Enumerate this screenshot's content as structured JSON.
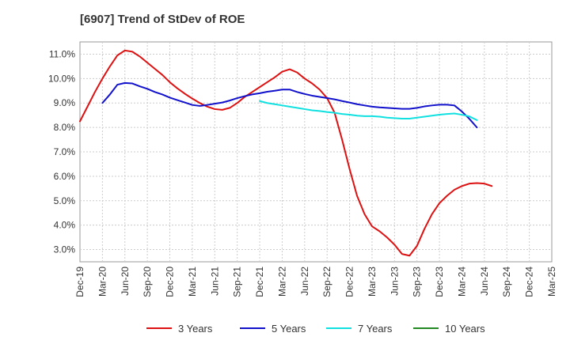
{
  "chart_data": {
    "type": "line",
    "title": "[6907]  Trend of StDev of ROE",
    "xlabel": "",
    "ylabel": "",
    "x_ticks": [
      "Dec-19",
      "Mar-20",
      "Jun-20",
      "Sep-20",
      "Dec-20",
      "Mar-21",
      "Jun-21",
      "Sep-21",
      "Dec-21",
      "Mar-22",
      "Jun-22",
      "Sep-22",
      "Dec-22",
      "Mar-23",
      "Jun-23",
      "Sep-23",
      "Dec-23",
      "Mar-24",
      "Jun-24",
      "Sep-24",
      "Dec-24",
      "Mar-25"
    ],
    "y_ticks": [
      "3.0%",
      "4.0%",
      "5.0%",
      "6.0%",
      "7.0%",
      "8.0%",
      "9.0%",
      "10.0%",
      "11.0%"
    ],
    "ylim": [
      2.5,
      11.5
    ],
    "grid": true,
    "legend_position": "bottom",
    "series": [
      {
        "name": "3 Years",
        "color": "#dd1111",
        "values": [
          [
            0,
            8.25
          ],
          [
            1,
            8.85
          ],
          [
            2,
            9.45
          ],
          [
            3,
            10.0
          ],
          [
            4,
            10.5
          ],
          [
            5,
            10.95
          ],
          [
            6,
            11.15
          ],
          [
            7,
            11.1
          ],
          [
            8,
            10.9
          ],
          [
            9,
            10.65
          ],
          [
            10,
            10.4
          ],
          [
            11,
            10.15
          ],
          [
            12,
            9.85
          ],
          [
            13,
            9.6
          ],
          [
            14,
            9.38
          ],
          [
            15,
            9.18
          ],
          [
            16,
            9.0
          ],
          [
            17,
            8.85
          ],
          [
            18,
            8.75
          ],
          [
            19,
            8.72
          ],
          [
            20,
            8.8
          ],
          [
            21,
            9.0
          ],
          [
            22,
            9.25
          ],
          [
            23,
            9.45
          ],
          [
            24,
            9.65
          ],
          [
            25,
            9.85
          ],
          [
            26,
            10.05
          ],
          [
            27,
            10.28
          ],
          [
            28,
            10.38
          ],
          [
            29,
            10.25
          ],
          [
            30,
            10.0
          ],
          [
            31,
            9.8
          ],
          [
            32,
            9.55
          ],
          [
            33,
            9.2
          ],
          [
            34,
            8.6
          ],
          [
            35,
            7.5
          ],
          [
            36,
            6.3
          ],
          [
            37,
            5.2
          ],
          [
            38,
            4.45
          ],
          [
            39,
            3.95
          ],
          [
            40,
            3.75
          ],
          [
            41,
            3.5
          ],
          [
            42,
            3.2
          ],
          [
            43,
            2.82
          ],
          [
            44,
            2.75
          ],
          [
            45,
            3.15
          ],
          [
            46,
            3.85
          ],
          [
            47,
            4.45
          ],
          [
            48,
            4.9
          ],
          [
            49,
            5.2
          ],
          [
            50,
            5.45
          ],
          [
            51,
            5.6
          ],
          [
            52,
            5.7
          ],
          [
            53,
            5.72
          ],
          [
            54,
            5.7
          ],
          [
            55,
            5.6
          ]
        ]
      },
      {
        "name": "5 Years",
        "color": "#1111cc",
        "values": [
          [
            3,
            9.0
          ],
          [
            4,
            9.35
          ],
          [
            5,
            9.75
          ],
          [
            6,
            9.82
          ],
          [
            7,
            9.8
          ],
          [
            8,
            9.68
          ],
          [
            9,
            9.58
          ],
          [
            10,
            9.45
          ],
          [
            11,
            9.35
          ],
          [
            12,
            9.22
          ],
          [
            13,
            9.12
          ],
          [
            14,
            9.02
          ],
          [
            15,
            8.92
          ],
          [
            16,
            8.88
          ],
          [
            17,
            8.92
          ],
          [
            18,
            8.97
          ],
          [
            19,
            9.02
          ],
          [
            20,
            9.1
          ],
          [
            21,
            9.2
          ],
          [
            22,
            9.28
          ],
          [
            23,
            9.35
          ],
          [
            24,
            9.4
          ],
          [
            25,
            9.46
          ],
          [
            26,
            9.5
          ],
          [
            27,
            9.55
          ],
          [
            28,
            9.55
          ],
          [
            29,
            9.45
          ],
          [
            30,
            9.37
          ],
          [
            31,
            9.3
          ],
          [
            32,
            9.25
          ],
          [
            33,
            9.2
          ],
          [
            34,
            9.15
          ],
          [
            35,
            9.08
          ],
          [
            36,
            9.02
          ],
          [
            37,
            8.95
          ],
          [
            38,
            8.9
          ],
          [
            39,
            8.85
          ],
          [
            40,
            8.82
          ],
          [
            41,
            8.8
          ],
          [
            42,
            8.78
          ],
          [
            43,
            8.76
          ],
          [
            44,
            8.76
          ],
          [
            45,
            8.8
          ],
          [
            46,
            8.86
          ],
          [
            47,
            8.9
          ],
          [
            48,
            8.93
          ],
          [
            49,
            8.93
          ],
          [
            50,
            8.9
          ],
          [
            51,
            8.65
          ],
          [
            52,
            8.35
          ],
          [
            53,
            8.0
          ]
        ]
      },
      {
        "name": "7 Years",
        "color": "#11e0e0",
        "values": [
          [
            24,
            9.08
          ],
          [
            25,
            9.0
          ],
          [
            26,
            8.95
          ],
          [
            27,
            8.9
          ],
          [
            28,
            8.85
          ],
          [
            29,
            8.8
          ],
          [
            30,
            8.75
          ],
          [
            31,
            8.7
          ],
          [
            32,
            8.67
          ],
          [
            33,
            8.63
          ],
          [
            34,
            8.6
          ],
          [
            35,
            8.55
          ],
          [
            36,
            8.52
          ],
          [
            37,
            8.48
          ],
          [
            38,
            8.46
          ],
          [
            39,
            8.46
          ],
          [
            40,
            8.44
          ],
          [
            41,
            8.4
          ],
          [
            42,
            8.38
          ],
          [
            43,
            8.36
          ],
          [
            44,
            8.36
          ],
          [
            45,
            8.4
          ],
          [
            46,
            8.44
          ],
          [
            47,
            8.48
          ],
          [
            48,
            8.52
          ],
          [
            49,
            8.55
          ],
          [
            50,
            8.57
          ],
          [
            51,
            8.52
          ],
          [
            52,
            8.45
          ],
          [
            53,
            8.3
          ]
        ]
      },
      {
        "name": "10 Years",
        "color": "#228822",
        "values": []
      }
    ]
  }
}
